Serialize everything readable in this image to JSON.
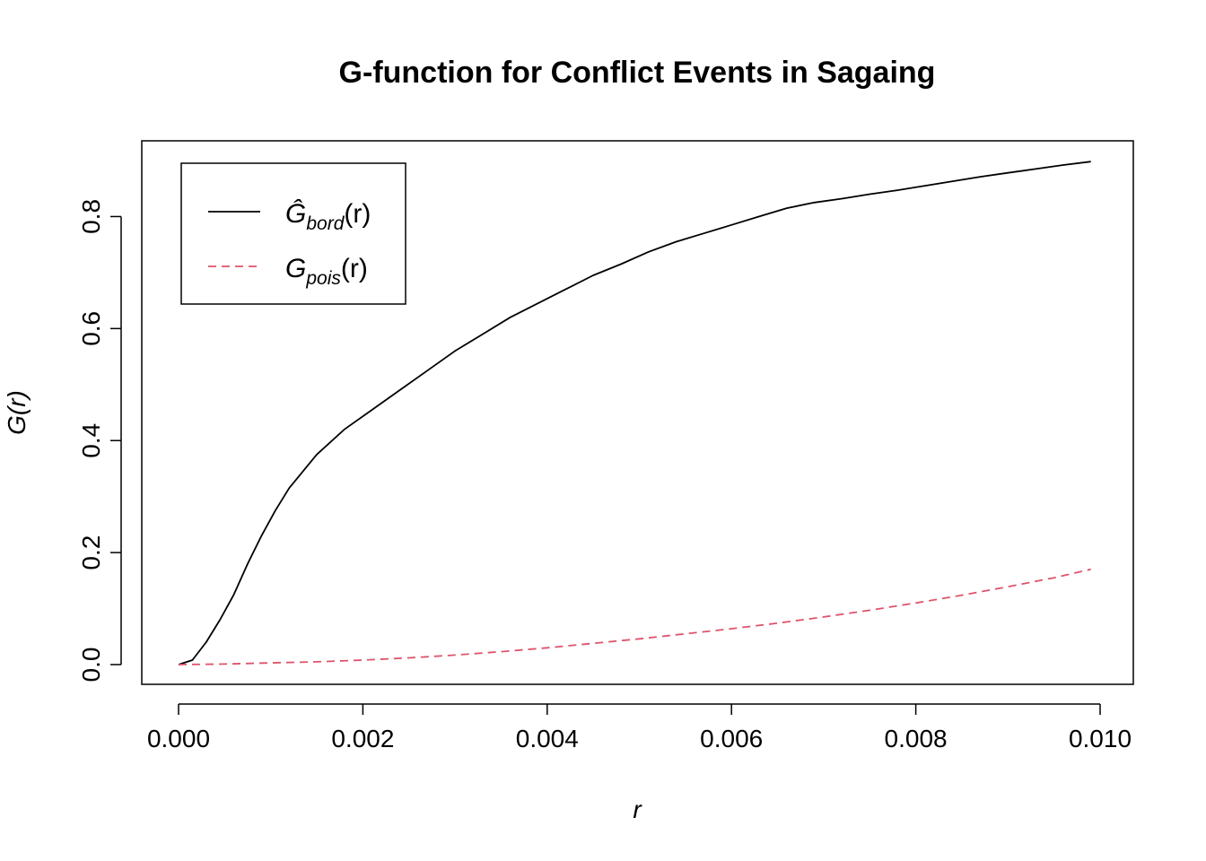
{
  "chart_data": {
    "type": "line",
    "title": "G-function for Conflict Events in Sagaing",
    "xlabel": "r",
    "ylabel": "G(r)",
    "xlim": [
      0.0,
      0.01
    ],
    "ylim": [
      0.0,
      0.9
    ],
    "x_ticks": [
      "0.000",
      "0.002",
      "0.004",
      "0.006",
      "0.008",
      "0.010"
    ],
    "y_ticks": [
      "0.0",
      "0.2",
      "0.4",
      "0.6",
      "0.8"
    ],
    "legend_position": "top-left",
    "series": [
      {
        "key": "bord",
        "legend_main": "Ĝ",
        "legend_sub": "bord",
        "legend_tail": "(r)",
        "color": "#000000",
        "dash": "solid",
        "x": [
          0,
          0.00015,
          0.0003,
          0.00045,
          0.0006,
          0.00075,
          0.0009,
          0.00105,
          0.0012,
          0.0015,
          0.0018,
          0.0021,
          0.0024,
          0.0027,
          0.003,
          0.0033,
          0.0036,
          0.0039,
          0.0042,
          0.0045,
          0.0048,
          0.0051,
          0.0054,
          0.0057,
          0.006,
          0.0063,
          0.0066,
          0.0069,
          0.0072,
          0.0075,
          0.0078,
          0.0081,
          0.0084,
          0.0087,
          0.009,
          0.0093,
          0.0096,
          0.0099
        ],
        "values": [
          0.0,
          0.008,
          0.04,
          0.08,
          0.125,
          0.18,
          0.23,
          0.275,
          0.315,
          0.375,
          0.42,
          0.455,
          0.49,
          0.525,
          0.56,
          0.59,
          0.62,
          0.645,
          0.67,
          0.695,
          0.715,
          0.737,
          0.755,
          0.77,
          0.785,
          0.8,
          0.815,
          0.825,
          0.832,
          0.84,
          0.847,
          0.855,
          0.863,
          0.871,
          0.878,
          0.885,
          0.892,
          0.898
        ]
      },
      {
        "key": "pois",
        "legend_main": "G",
        "legend_sub": "pois",
        "legend_tail": "(r)",
        "color": "#df536b",
        "dash": "dashed",
        "x": [
          0,
          0.0005,
          0.001,
          0.0015,
          0.002,
          0.0025,
          0.003,
          0.0035,
          0.004,
          0.0045,
          0.005,
          0.0055,
          0.006,
          0.0065,
          0.007,
          0.0075,
          0.008,
          0.0085,
          0.009,
          0.0095,
          0.0099
        ],
        "values": [
          0.0,
          0.001,
          0.003,
          0.005,
          0.008,
          0.012,
          0.017,
          0.023,
          0.03,
          0.038,
          0.046,
          0.055,
          0.064,
          0.074,
          0.085,
          0.097,
          0.11,
          0.124,
          0.139,
          0.155,
          0.17
        ]
      }
    ]
  }
}
